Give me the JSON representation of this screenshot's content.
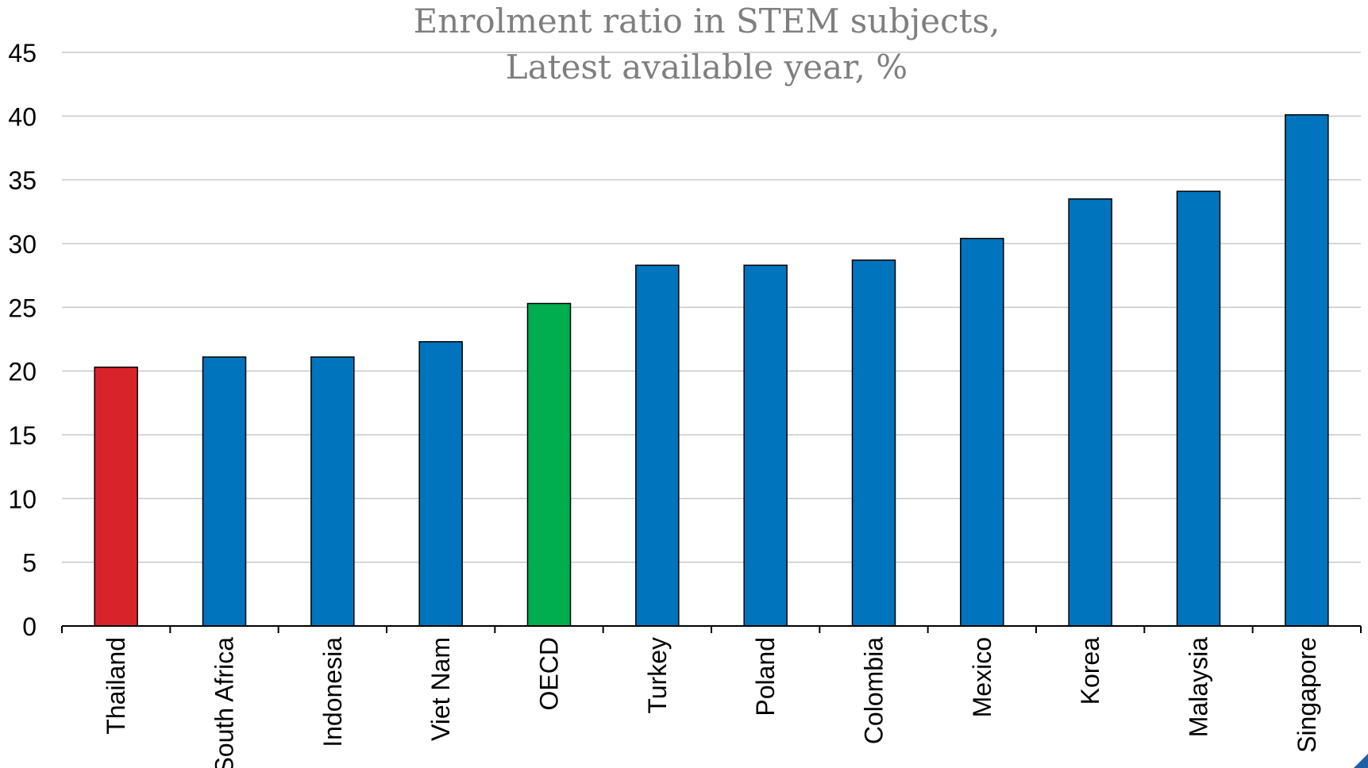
{
  "chart_data": {
    "type": "bar",
    "title": "Enrolment ratio in STEM subjects,",
    "subtitle": "Latest available year, %",
    "xlabel": "",
    "ylabel": "",
    "ylim": [
      0,
      45
    ],
    "yticks": [
      0,
      5,
      10,
      15,
      20,
      25,
      30,
      35,
      40,
      45
    ],
    "grid": true,
    "categories": [
      "Thailand",
      "South Africa",
      "Indonesia",
      "Viet Nam",
      "OECD",
      "Turkey",
      "Poland",
      "Colombia",
      "Mexico",
      "Korea",
      "Malaysia",
      "Singapore"
    ],
    "values": [
      20.3,
      21.1,
      21.1,
      22.3,
      25.3,
      28.3,
      28.3,
      28.7,
      30.4,
      33.5,
      34.1,
      40.1
    ],
    "colors": [
      "#d9232a",
      "#0074bc",
      "#0074bc",
      "#0074bc",
      "#00ae4f",
      "#0074bc",
      "#0074bc",
      "#0074bc",
      "#0074bc",
      "#0074bc",
      "#0074bc",
      "#0074bc"
    ]
  }
}
